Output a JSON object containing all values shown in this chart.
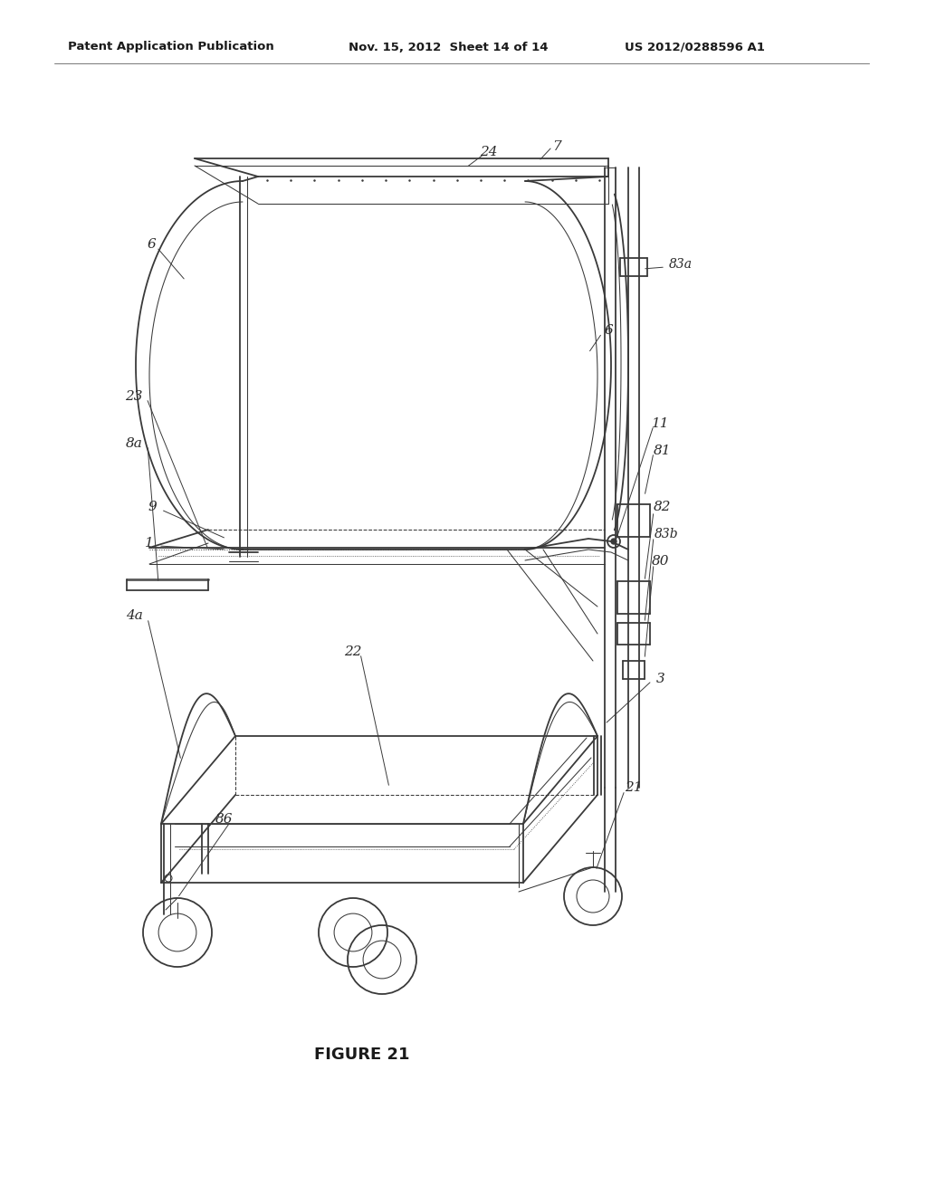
{
  "header_left": "Patent Application Publication",
  "header_mid": "Nov. 15, 2012  Sheet 14 of 14",
  "header_right": "US 2012/0288596 A1",
  "figure_label": "FIGURE 21",
  "bg_color": "#ffffff",
  "line_color": "#3a3a3a",
  "lw_main": 1.3,
  "lw_thin": 0.75,
  "lw_thick": 2.0,
  "lw_ultra": 0.5
}
